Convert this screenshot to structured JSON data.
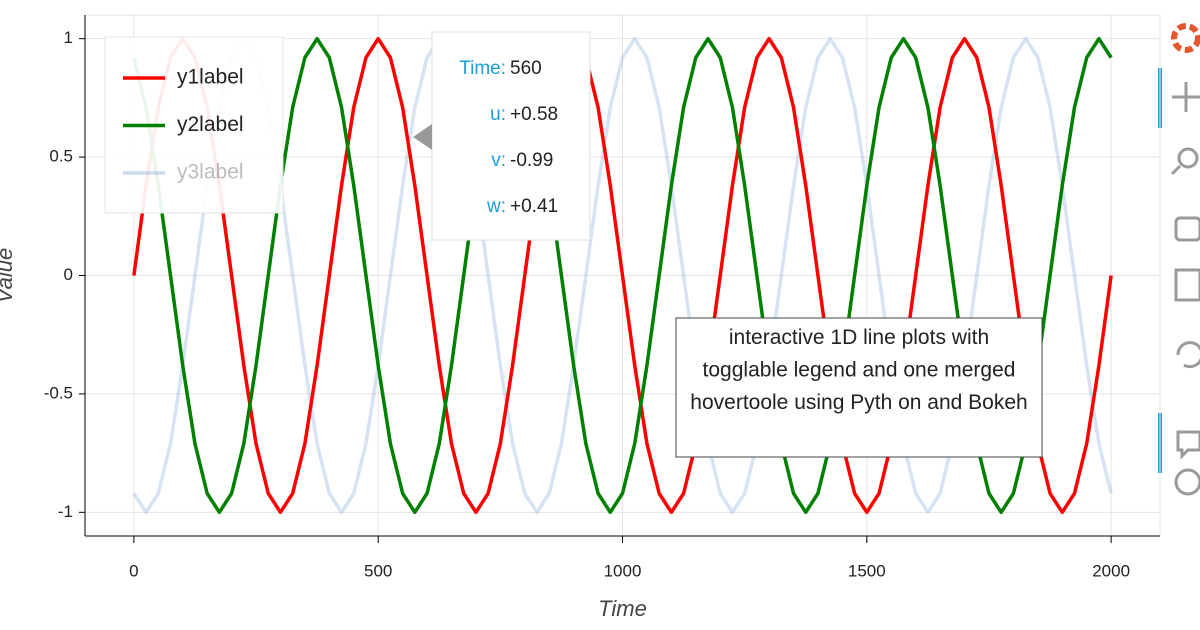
{
  "chart_data": {
    "type": "line",
    "xlabel": "Time",
    "ylabel": "Value",
    "xlim": [
      -100,
      2100
    ],
    "ylim": [
      -1.1,
      1.1
    ],
    "xticks": [
      0,
      500,
      1000,
      1500,
      2000
    ],
    "yticks": [
      -1,
      -0.5,
      0,
      0.5,
      1
    ],
    "grid": true,
    "legend": "top-left",
    "annotation": "interactive 1D line plots with togglable legend and one merged hovertoole using Pyth on and Bokeh",
    "tooltip": [
      {
        "label": "Time:",
        "value": "560"
      },
      {
        "label": "u:",
        "value": "+0.58"
      },
      {
        "label": "v:",
        "value": "-0.99"
      },
      {
        "label": "w:",
        "value": "+0.41"
      }
    ],
    "x": [
      0,
      25,
      50,
      75,
      100,
      125,
      150,
      175,
      200,
      225,
      250,
      275,
      300,
      325,
      350,
      375,
      400,
      425,
      450,
      475,
      500,
      525,
      550,
      575,
      600,
      625,
      650,
      675,
      700,
      725,
      750,
      775,
      800,
      825,
      850,
      875,
      900,
      925,
      950,
      975,
      1000,
      1025,
      1050,
      1075,
      1100,
      1125,
      1150,
      1175,
      1200,
      1225,
      1250,
      1275,
      1300,
      1325,
      1350,
      1375,
      1400,
      1425,
      1450,
      1475,
      1500,
      1525,
      1550,
      1575,
      1600,
      1625,
      1650,
      1675,
      1700,
      1725,
      1750,
      1775,
      1800,
      1825,
      1850,
      1875,
      1900,
      1925,
      1950,
      1975,
      2000
    ],
    "series": [
      {
        "name": "y1label",
        "color": "#ff0000",
        "muted": false,
        "values": [
          0,
          0.38,
          0.71,
          0.92,
          1,
          0.92,
          0.71,
          0.38,
          0,
          -0.38,
          -0.71,
          -0.92,
          -1,
          -0.92,
          -0.71,
          -0.38,
          0,
          0.38,
          0.71,
          0.92,
          1,
          0.92,
          0.71,
          0.38,
          0,
          -0.38,
          -0.71,
          -0.92,
          -1,
          -0.92,
          -0.71,
          -0.38,
          0,
          0.38,
          0.71,
          0.92,
          1,
          0.92,
          0.71,
          0.38,
          0,
          -0.38,
          -0.71,
          -0.92,
          -1,
          -0.92,
          -0.71,
          -0.38,
          0,
          0.38,
          0.71,
          0.92,
          1,
          0.92,
          0.71,
          0.38,
          0,
          -0.38,
          -0.71,
          -0.92,
          -1,
          -0.92,
          -0.71,
          -0.38,
          0,
          0.38,
          0.71,
          0.92,
          1,
          0.92,
          0.71,
          0.38,
          0,
          -0.38,
          -0.71,
          -0.92,
          -1,
          -0.92,
          -0.71,
          -0.38,
          0
        ]
      },
      {
        "name": "y2label",
        "color": "#008000",
        "muted": false,
        "values": [
          0.92,
          0.71,
          0.38,
          0,
          -0.38,
          -0.71,
          -0.92,
          -1,
          -0.92,
          -0.71,
          -0.38,
          0,
          0.38,
          0.71,
          0.92,
          1,
          0.92,
          0.71,
          0.38,
          0,
          -0.38,
          -0.71,
          -0.92,
          -1,
          -0.92,
          -0.71,
          -0.38,
          0,
          0.38,
          0.71,
          0.92,
          1,
          0.92,
          0.71,
          0.38,
          0,
          -0.38,
          -0.71,
          -0.92,
          -1,
          -0.92,
          -0.71,
          -0.38,
          0,
          0.38,
          0.71,
          0.92,
          1,
          0.92,
          0.71,
          0.38,
          0,
          -0.38,
          -0.71,
          -0.92,
          -1,
          -0.92,
          -0.71,
          -0.38,
          0,
          0.38,
          0.71,
          0.92,
          1,
          0.92,
          0.71,
          0.38,
          0,
          -0.38,
          -0.71,
          -0.92,
          -1,
          -0.92,
          -0.71,
          -0.38,
          0,
          0.38,
          0.71,
          0.92,
          1,
          0.92
        ]
      },
      {
        "name": "y3label",
        "color": "#5b8fd0",
        "muted": true,
        "values": [
          -0.92,
          -1,
          -0.92,
          -0.71,
          -0.38,
          0,
          0.38,
          0.71,
          0.92,
          1,
          0.92,
          0.71,
          0.38,
          0,
          -0.38,
          -0.71,
          -0.92,
          -1,
          -0.92,
          -0.71,
          -0.38,
          0,
          0.38,
          0.71,
          0.92,
          1,
          0.92,
          0.71,
          0.38,
          0,
          -0.38,
          -0.71,
          -0.92,
          -1,
          -0.92,
          -0.71,
          -0.38,
          0,
          0.38,
          0.71,
          0.92,
          1,
          0.92,
          0.71,
          0.38,
          0,
          -0.38,
          -0.71,
          -0.92,
          -1,
          -0.92,
          -0.71,
          -0.38,
          0,
          0.38,
          0.71,
          0.92,
          1,
          0.92,
          0.71,
          0.38,
          0,
          -0.38,
          -0.71,
          -0.92,
          -1,
          -0.92,
          -0.71,
          -0.38,
          0,
          0.38,
          0.71,
          0.92,
          1,
          0.92,
          0.71,
          0.38,
          0,
          -0.38,
          -0.71,
          -0.92
        ]
      }
    ]
  }
}
